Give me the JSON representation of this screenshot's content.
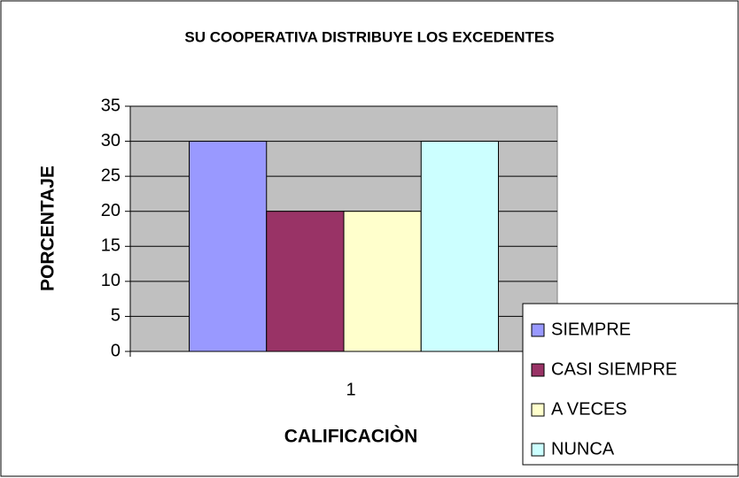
{
  "chart_data": {
    "type": "bar",
    "title": "SU COOPERATIVA DISTRIBUYE LOS EXCEDENTES",
    "x_label": "CALIFICACIÒN",
    "y_label": "PORCENTAJE",
    "categories": [
      "1"
    ],
    "series": [
      {
        "name": "SIEMPRE",
        "color": "#9999ff",
        "values": [
          30
        ]
      },
      {
        "name": "CASI SIEMPRE",
        "color": "#993366",
        "values": [
          20
        ]
      },
      {
        "name": "A VECES",
        "color": "#ffffcc",
        "values": [
          20
        ]
      },
      {
        "name": "NUNCA",
        "color": "#ccffff",
        "values": [
          30
        ]
      }
    ],
    "ylim": [
      0,
      35
    ],
    "yticks": [
      0,
      5,
      10,
      15,
      20,
      25,
      30,
      35
    ],
    "grid": true,
    "legend": "right"
  }
}
